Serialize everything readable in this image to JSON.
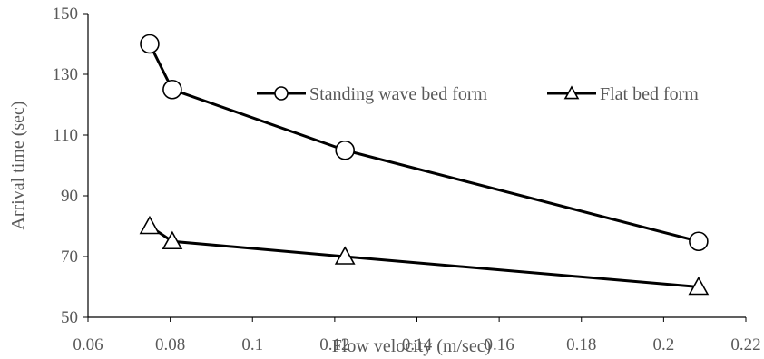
{
  "chart_data": {
    "type": "line",
    "title": "",
    "xlabel": "Flow velocity (m/sec)",
    "ylabel": "Arrival time (sec)",
    "xlim": [
      0.06,
      0.22
    ],
    "ylim": [
      50,
      150
    ],
    "xticks": [
      0.06,
      0.08,
      0.1,
      0.12,
      0.14,
      0.16,
      0.18,
      0.2,
      0.22
    ],
    "yticks": [
      50,
      70,
      90,
      110,
      130,
      150
    ],
    "xtick_labels": [
      "0.06",
      "0.08",
      "0.1",
      "0.12",
      "0.14",
      "0.16",
      "0.18",
      "0.2",
      "0.22"
    ],
    "ytick_labels": [
      "50",
      "70",
      "90",
      "110",
      "130",
      "150"
    ],
    "grid": false,
    "legend_position": "top-right",
    "series": [
      {
        "name": "Standing wave bed form",
        "marker": "circle",
        "color": "#000000",
        "x": [
          0.075,
          0.0805,
          0.1225,
          0.2085
        ],
        "y": [
          140,
          125,
          105,
          75
        ]
      },
      {
        "name": "Flat bed form",
        "marker": "triangle",
        "color": "#000000",
        "x": [
          0.075,
          0.0805,
          0.1225,
          0.2085
        ],
        "y": [
          80,
          75,
          70,
          60
        ]
      }
    ]
  }
}
